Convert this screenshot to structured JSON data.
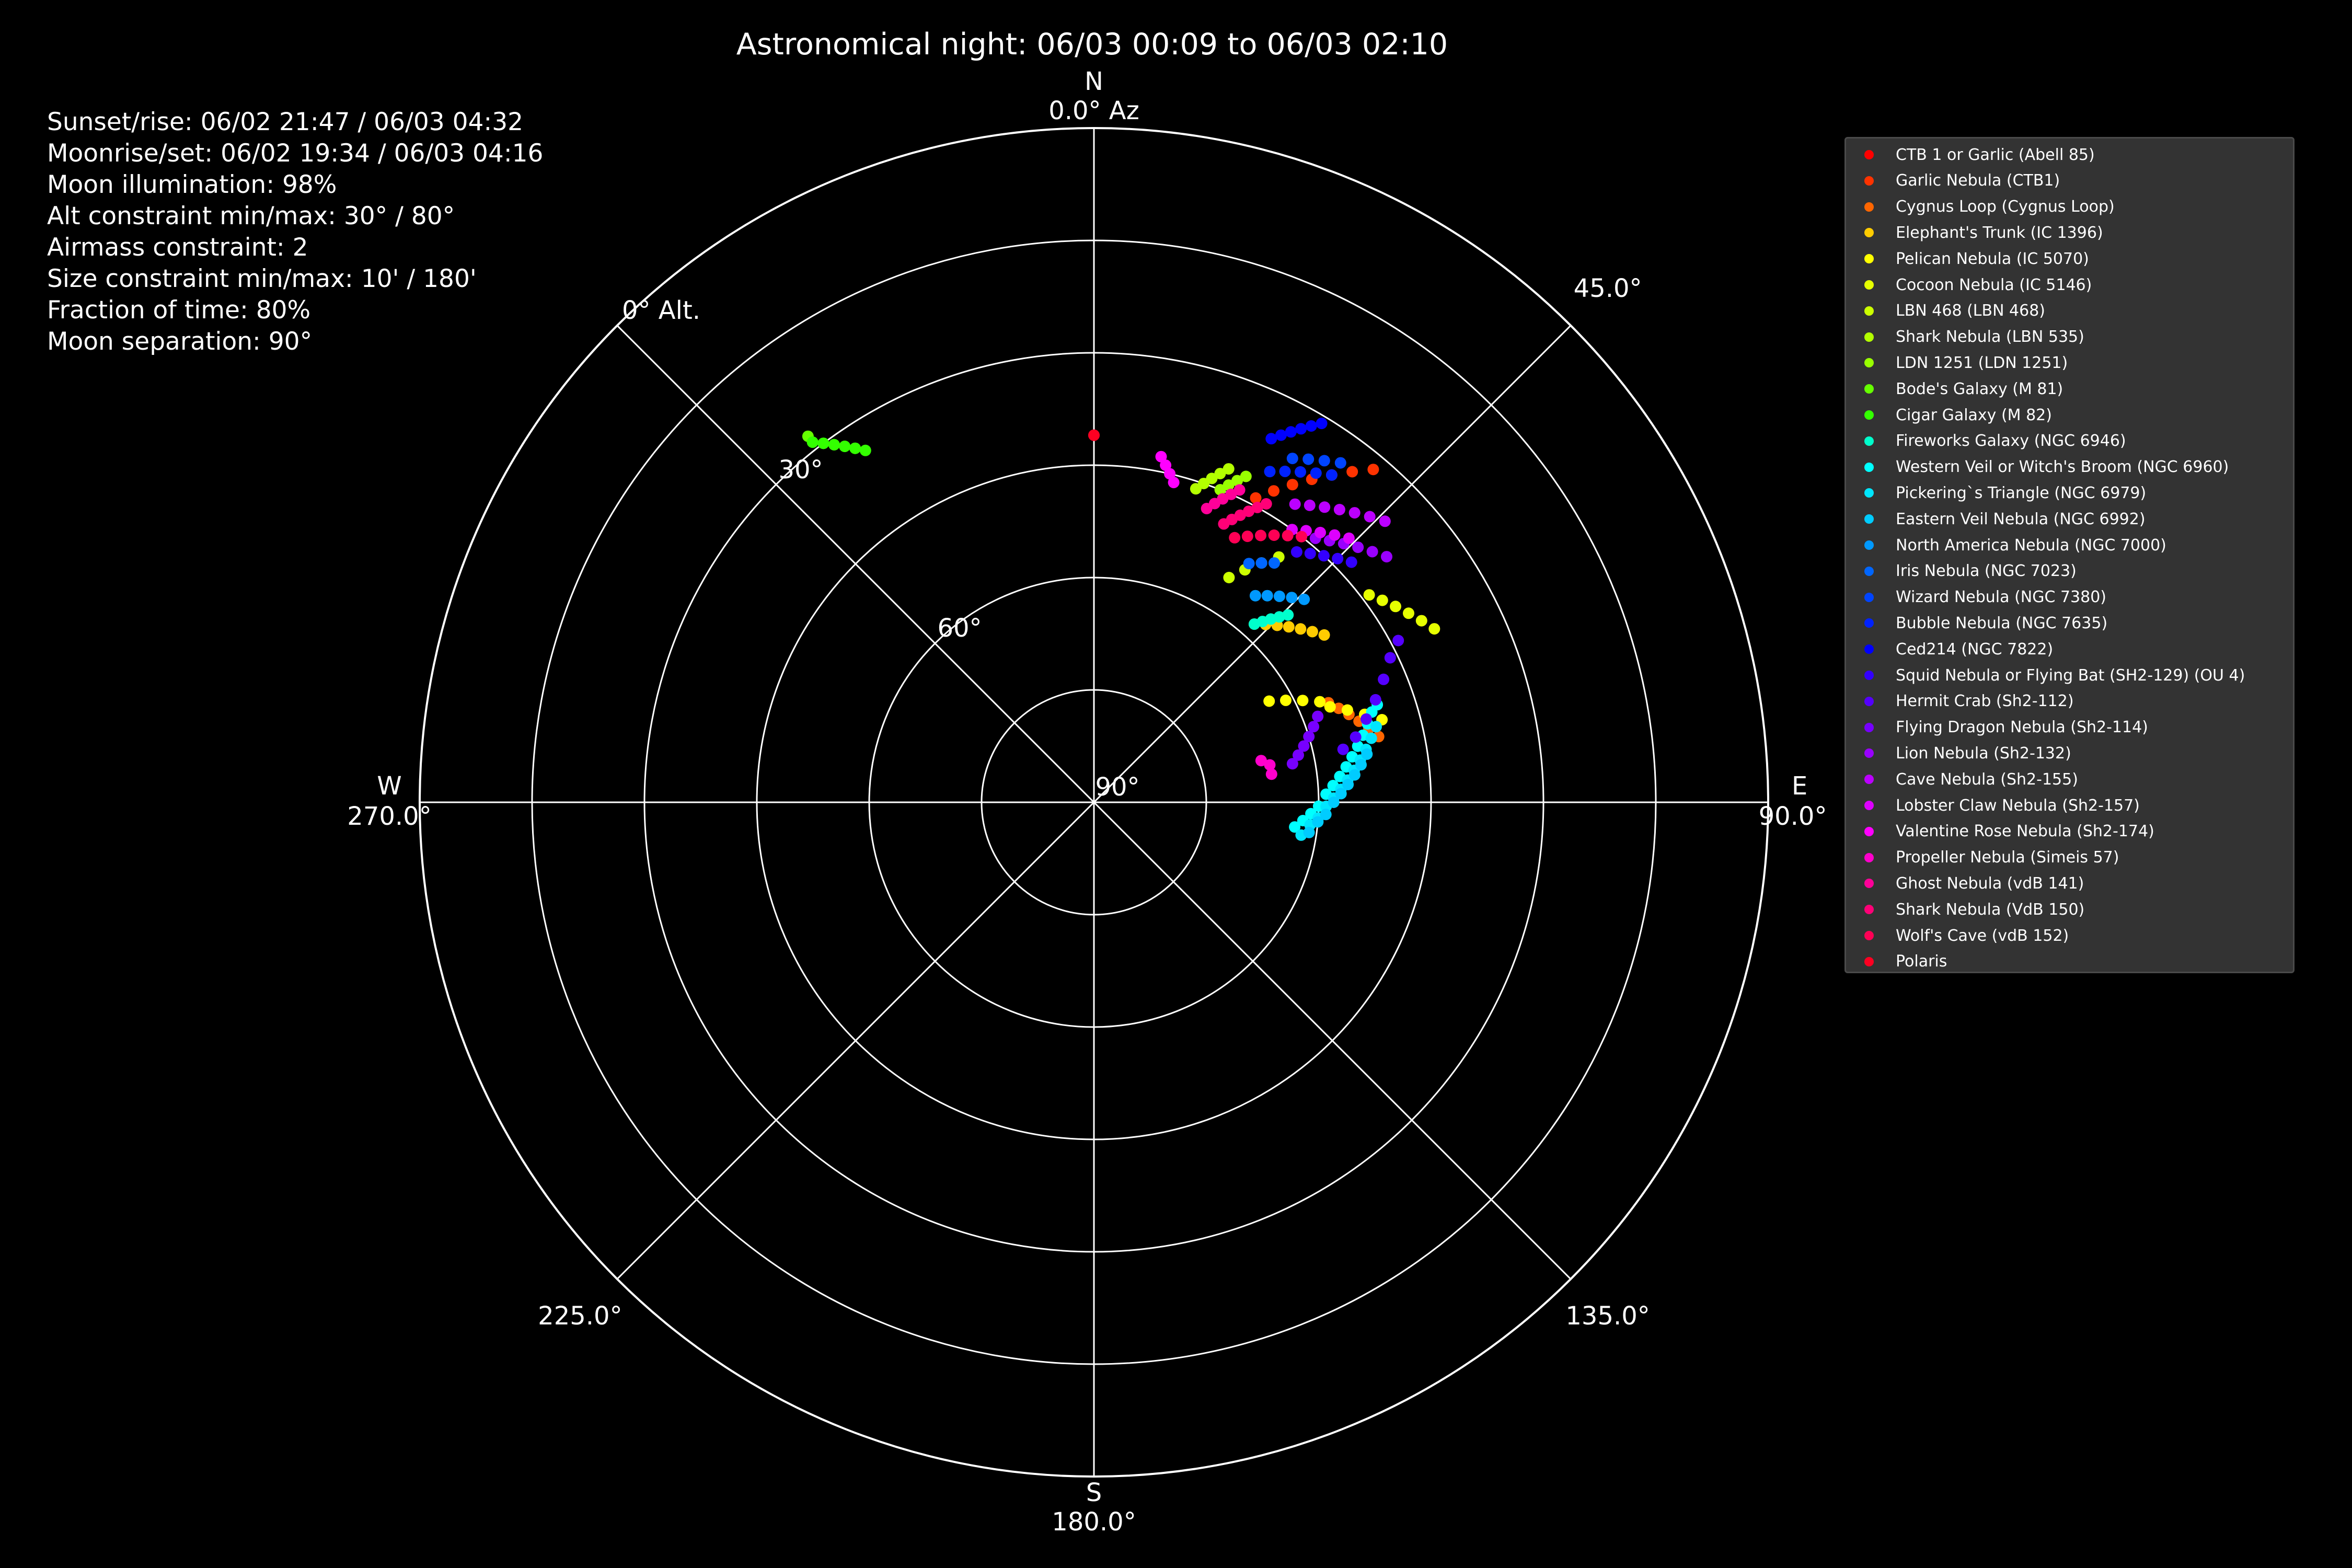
{
  "chart_data": {
    "type": "scatter",
    "projection": "polar",
    "title": "Astronomical night: 06/03 00:09 to 06/03 02:10",
    "radial_axis": {
      "label": "0° Alt.",
      "range": [
        90,
        0
      ],
      "tick_labels": [
        "90°",
        "60°",
        "30°"
      ]
    },
    "azimuth_axis": {
      "ticks": [
        {
          "angle": 0,
          "label": "0.0° Az",
          "cardinal": "N"
        },
        {
          "angle": 45,
          "label": "45.0°",
          "cardinal": ""
        },
        {
          "angle": 90,
          "label": "90.0°",
          "cardinal": "E"
        },
        {
          "angle": 135,
          "label": "135.0°",
          "cardinal": ""
        },
        {
          "angle": 180,
          "label": "180.0°",
          "cardinal": "S"
        },
        {
          "angle": 225,
          "label": "225.0°",
          "cardinal": ""
        },
        {
          "angle": 270,
          "label": "270.0°",
          "cardinal": "W"
        }
      ]
    },
    "info_lines": [
      "Sunset/rise: 06/02 21:47 / 06/03 04:32",
      "Moonrise/set: 06/02 19:34 / 06/03 04:16",
      "Moon illumination: 98%",
      "Alt constraint min/max: 30° / 80°",
      "Airmass constraint: 2",
      "Size constraint min/max: 10' / 180'",
      "Fraction of time: 80%",
      "Moon separation: 90°"
    ],
    "legend_position": "upper-right",
    "series": [
      {
        "name": "CTB 1 or Garlic (Abell 85)",
        "color": "#ff0000",
        "points": []
      },
      {
        "name": "Garlic Nebula (CTB1)",
        "color": "#ff3300",
        "points": [
          [
            28,
            44
          ],
          [
            30,
            42
          ],
          [
            32,
            40
          ],
          [
            34,
            38
          ],
          [
            36,
            36
          ],
          [
            38,
            34
          ],
          [
            40,
            32
          ]
        ]
      },
      {
        "name": "Cygnus Loop (Cygnus Loop)",
        "color": "#ff6600",
        "points": [
          [
            67,
            56
          ],
          [
            69,
            55
          ],
          [
            71,
            54
          ],
          [
            73,
            53
          ],
          [
            75,
            52
          ],
          [
            77,
            51
          ]
        ]
      },
      {
        "name": "Elephant's Trunk (IC 1396)",
        "color": "#ffcc00",
        "points": [
          [
            42,
            58
          ],
          [
            44,
            57
          ],
          [
            46,
            56
          ],
          [
            48,
            55
          ],
          [
            50,
            54
          ],
          [
            52,
            53
          ],
          [
            54,
            52
          ]
        ]
      },
      {
        "name": "Pelican Nebula (IC 5070)",
        "color": "#ffff00",
        "points": [
          [
            60,
            63
          ],
          [
            62,
            61
          ],
          [
            64,
            59
          ],
          [
            66,
            57
          ],
          [
            68,
            56
          ],
          [
            70,
            54
          ],
          [
            72,
            52
          ],
          [
            74,
            50
          ]
        ]
      },
      {
        "name": "Cocoon Nebula (IC 5146)",
        "color": "#e6ff00",
        "points": [
          [
            53,
            44
          ],
          [
            55,
            43
          ],
          [
            57,
            42
          ],
          [
            59,
            41
          ],
          [
            61,
            40
          ],
          [
            63,
            39
          ]
        ]
      },
      {
        "name": "LBN 468 (LBN 468)",
        "color": "#ccff00",
        "points": [
          [
            31,
            55
          ],
          [
            33,
            53
          ],
          [
            35,
            51
          ],
          [
            37,
            49
          ]
        ]
      },
      {
        "name": "Shark Nebula (LBN 535)",
        "color": "#b3ff00",
        "points": [
          [
            18,
            46
          ],
          [
            19,
            45
          ],
          [
            20,
            44
          ],
          [
            21,
            43
          ],
          [
            22,
            42
          ]
        ]
      },
      {
        "name": "LDN 1251 (LDN 1251)",
        "color": "#99ff00",
        "points": [
          [
            22,
            45
          ],
          [
            23,
            44
          ],
          [
            24,
            43
          ],
          [
            25,
            42
          ]
        ]
      },
      {
        "name": "Bode's Galaxy (M 81)",
        "color": "#66ff00",
        "points": [
          [
            326,
            33
          ],
          [
            325,
            32
          ],
          [
            324,
            31
          ],
          [
            323,
            30
          ],
          [
            322,
            29
          ],
          [
            322,
            28
          ]
        ]
      },
      {
        "name": "Cigar Galaxy (M 82)",
        "color": "#33ff00",
        "points": [
          [
            327,
            34
          ],
          [
            326,
            33
          ],
          [
            325,
            32
          ],
          [
            324,
            31
          ],
          [
            323,
            30
          ],
          [
            322,
            29
          ]
        ]
      },
      {
        "name": "Fireworks Galaxy (NGC 6946)",
        "color": "#00ffcc",
        "points": [
          [
            42,
            58
          ],
          [
            43,
            57
          ],
          [
            44,
            56
          ],
          [
            45,
            55
          ],
          [
            46,
            54
          ]
        ]
      },
      {
        "name": "Western Veil or Witch's Broom (NGC 6960)",
        "color": "#00ffff",
        "points": [
          [
            97,
            63
          ],
          [
            95,
            62
          ],
          [
            93,
            61
          ],
          [
            91,
            60
          ],
          [
            88,
            59
          ],
          [
            86,
            58
          ],
          [
            84,
            57
          ],
          [
            82,
            56
          ],
          [
            80,
            55
          ],
          [
            78,
            54
          ],
          [
            76,
            53
          ],
          [
            74,
            52
          ],
          [
            72,
            51
          ],
          [
            71,
            50
          ]
        ]
      },
      {
        "name": "Pickering`s Triangle (NGC 6979)",
        "color": "#00e6ff",
        "points": [
          [
            99,
            62
          ],
          [
            96,
            61
          ],
          [
            94,
            60
          ],
          [
            91,
            59
          ],
          [
            89,
            58
          ],
          [
            87,
            57
          ],
          [
            85,
            56
          ],
          [
            83,
            55
          ],
          [
            81,
            54
          ],
          [
            79,
            53
          ],
          [
            77,
            52
          ],
          [
            75,
            51
          ]
        ]
      },
      {
        "name": "Eastern Veil Nebula (NGC 6992)",
        "color": "#00ccff",
        "points": [
          [
            98,
            61
          ],
          [
            95,
            60
          ],
          [
            93,
            59
          ],
          [
            90,
            58
          ],
          [
            88,
            57
          ],
          [
            86,
            56
          ],
          [
            84,
            55
          ],
          [
            82,
            54
          ],
          [
            80,
            53
          ]
        ]
      },
      {
        "name": "North America Nebula (NGC 7000)",
        "color": "#0099ff",
        "points": [
          [
            38,
            55
          ],
          [
            40,
            54
          ],
          [
            42,
            53
          ],
          [
            44,
            52
          ],
          [
            46,
            51
          ]
        ]
      },
      {
        "name": "Iris Nebula (NGC 7023)",
        "color": "#0066ff",
        "points": [
          [
            33,
            52
          ],
          [
            35,
            51
          ],
          [
            37,
            50
          ]
        ]
      },
      {
        "name": "Wizard Nebula (NGC 7380)",
        "color": "#0044ff",
        "points": [
          [
            30,
            37
          ],
          [
            32,
            36
          ],
          [
            34,
            35
          ],
          [
            36,
            34
          ]
        ]
      },
      {
        "name": "Bubble Nebula (NGC 7635)",
        "color": "#0022ff",
        "points": [
          [
            28,
            40
          ],
          [
            30,
            39
          ],
          [
            32,
            38
          ],
          [
            34,
            37
          ],
          [
            36,
            36
          ]
        ]
      },
      {
        "name": "Ced214 (NGC 7822)",
        "color": "#0000ff",
        "points": [
          [
            26,
            36
          ],
          [
            27,
            35
          ],
          [
            28,
            34
          ],
          [
            29,
            33
          ],
          [
            30,
            32
          ],
          [
            31,
            31
          ]
        ]
      },
      {
        "name": "Squid Nebula or Flying Bat (SH2-129) (OU 4)",
        "color": "#3300ff",
        "points": [
          [
            39,
            47
          ],
          [
            41,
            46
          ],
          [
            43,
            45
          ],
          [
            45,
            44
          ],
          [
            47,
            43
          ]
        ]
      },
      {
        "name": "Hermit Crab (Sh2-112)",
        "color": "#5500ff",
        "points": [
          [
            78,
            56
          ],
          [
            76,
            54
          ],
          [
            73,
            52
          ],
          [
            70,
            50
          ],
          [
            67,
            48
          ],
          [
            64,
            46
          ],
          [
            62,
            44
          ]
        ]
      },
      {
        "name": "Flying Dragon Nebula (Sh2-114)",
        "color": "#7700ff",
        "points": [
          [
            79,
            63
          ],
          [
            77,
            62
          ],
          [
            75,
            61
          ],
          [
            73,
            60
          ],
          [
            71,
            59
          ],
          [
            69,
            58
          ]
        ]
      },
      {
        "name": "Lion Nebula (Sh2-132)",
        "color": "#9900ff",
        "points": [
          [
            40,
            44
          ],
          [
            42,
            43
          ],
          [
            44,
            42
          ],
          [
            46,
            41
          ],
          [
            48,
            40
          ],
          [
            50,
            39
          ]
        ]
      },
      {
        "name": "Cave Nebula (Sh2-155)",
        "color": "#bb00ff",
        "points": [
          [
            34,
            42
          ],
          [
            36,
            41
          ],
          [
            38,
            40
          ],
          [
            40,
            39
          ],
          [
            42,
            38
          ],
          [
            44,
            37
          ],
          [
            46,
            36
          ]
        ]
      },
      {
        "name": "Lobster Claw Nebula (Sh2-157)",
        "color": "#dd00ff",
        "points": [
          [
            36,
            45
          ],
          [
            38,
            44
          ],
          [
            40,
            43
          ],
          [
            42,
            42
          ],
          [
            44,
            41
          ]
        ]
      },
      {
        "name": "Valentine Rose Nebula (Sh2-174)",
        "color": "#ff00ff",
        "points": [
          [
            14,
            46
          ],
          [
            13,
            45
          ],
          [
            12,
            44
          ],
          [
            11,
            43
          ]
        ]
      },
      {
        "name": "Propeller Nebula (Simeis 57)",
        "color": "#ff00cc",
        "points": [
          [
            76,
            67
          ],
          [
            78,
            66
          ],
          [
            81,
            66
          ]
        ]
      },
      {
        "name": "Ghost Nebula (vdB 141)",
        "color": "#ff0099",
        "points": [
          [
            21,
            48
          ],
          [
            22,
            47
          ],
          [
            23,
            46
          ],
          [
            24,
            45
          ],
          [
            25,
            44
          ]
        ]
      },
      {
        "name": "Shark Nebula (VdB 150)",
        "color": "#ff0077",
        "points": [
          [
            25,
            49
          ],
          [
            26,
            48
          ],
          [
            27,
            47
          ],
          [
            28,
            46
          ],
          [
            29,
            45
          ],
          [
            30,
            44
          ]
        ]
      },
      {
        "name": "Wolf's Cave (vdB 152)",
        "color": "#ff0055",
        "points": [
          [
            28,
            50
          ],
          [
            30,
            49
          ],
          [
            32,
            48
          ],
          [
            34,
            47
          ],
          [
            36,
            46
          ],
          [
            38,
            45
          ]
        ]
      },
      {
        "name": "Polaris",
        "color": "#ff0022",
        "points": [
          [
            0,
            41
          ],
          [
            0,
            41
          ]
        ]
      }
    ]
  }
}
